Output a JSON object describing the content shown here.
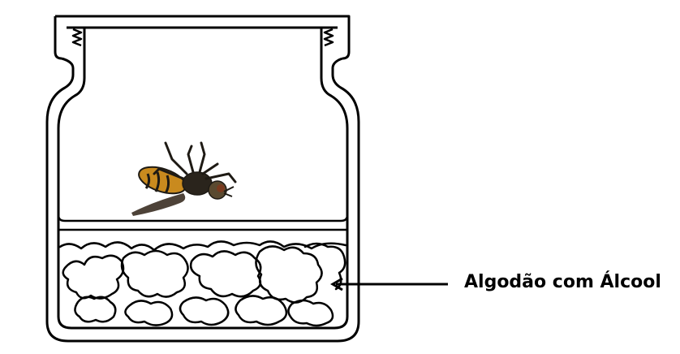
{
  "diagram": {
    "callout": {
      "label": "Algodão com Álcool"
    },
    "colors": {
      "outline": "#000000",
      "background": "#ffffff",
      "insect_body": "#c98a1e",
      "insect_dark": "#1e1a14",
      "insect_wing": "#3a2e22"
    },
    "icons": {
      "insect": "dead-fly-icon",
      "cotton": "cotton-wool-icon",
      "arrow": "arrow-left-icon"
    }
  }
}
